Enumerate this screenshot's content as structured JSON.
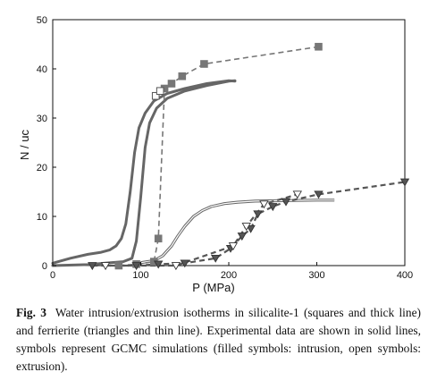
{
  "figure": {
    "label": "Fig. 3",
    "caption": "Water intrusion/extrusion isotherms in silicalite-1 (squares and thick line) and ferrierite (triangles and thin line). Experimental data are shown in solid lines, symbols represent GCMC simulations (filled symbols: intrusion, open symbols: extrusion)."
  },
  "chart_data": {
    "type": "line",
    "title": "",
    "xlabel": "P (MPa)",
    "ylabel": "N / uc",
    "xlim": [
      0,
      400
    ],
    "ylim": [
      0,
      50
    ],
    "xticks": [
      0,
      100,
      200,
      300,
      400
    ],
    "yticks": [
      0,
      10,
      20,
      30,
      40,
      50
    ],
    "grid": false,
    "series": [
      {
        "style": "thick-solid",
        "color": "#666666",
        "x": [
          0,
          20,
          40,
          55,
          65,
          72,
          78,
          83,
          88,
          93,
          98,
          105,
          115,
          130,
          150,
          175,
          200,
          207
        ],
        "y": [
          0.5,
          1.5,
          2.3,
          2.7,
          3.2,
          4.0,
          5.5,
          8.5,
          15,
          23,
          28,
          31,
          33.5,
          35,
          36,
          37,
          37.6,
          37.5
        ]
      },
      {
        "style": "thick-solid",
        "color": "#666666",
        "x": [
          0,
          40,
          80,
          90,
          95,
          100,
          105,
          110,
          118,
          130,
          150,
          175,
          200,
          207
        ],
        "y": [
          0,
          0.2,
          0.8,
          1.5,
          5,
          14,
          24,
          29,
          32,
          34,
          35.5,
          36.6,
          37.5,
          37.6
        ]
      },
      {
        "style": "thin-double-solid",
        "color": "#666666",
        "x": [
          100,
          115,
          125,
          135,
          142,
          150,
          160,
          170,
          180,
          195,
          210,
          230,
          260,
          300,
          320
        ],
        "y": [
          0.6,
          1.0,
          2.0,
          4.0,
          6.0,
          8.0,
          10.0,
          11.2,
          12.0,
          12.6,
          12.9,
          13.1,
          13.2,
          13.3,
          13.3
        ]
      },
      {
        "style": "dashed",
        "marker": "square-filled",
        "color": "#777777",
        "x": [
          75,
          95,
          115,
          120,
          127,
          135,
          147,
          172,
          302
        ],
        "y": [
          0,
          0.3,
          0.8,
          5.5,
          36,
          37,
          38.5,
          41,
          44.5
        ]
      },
      {
        "style": "dashed",
        "marker": "square-open",
        "color": "#777777",
        "x": [
          117,
          122
        ],
        "y": [
          34.5,
          35.5
        ]
      },
      {
        "style": "dashed",
        "marker": "triangle-down-filled",
        "color": "#555555",
        "x": [
          45,
          95,
          120,
          150,
          185,
          202,
          215,
          225,
          233,
          250,
          265,
          302,
          400
        ],
        "y": [
          0,
          0,
          0.3,
          0.5,
          1.5,
          3.5,
          6.0,
          7.5,
          10.5,
          12.0,
          13.0,
          14.5,
          17
        ]
      },
      {
        "style": "dashed",
        "marker": "triangle-down-open",
        "color": "#555555",
        "x": [
          60,
          140,
          205,
          220,
          240,
          278
        ],
        "y": [
          0,
          0,
          4.0,
          8.0,
          12.5,
          14.5
        ]
      }
    ]
  }
}
